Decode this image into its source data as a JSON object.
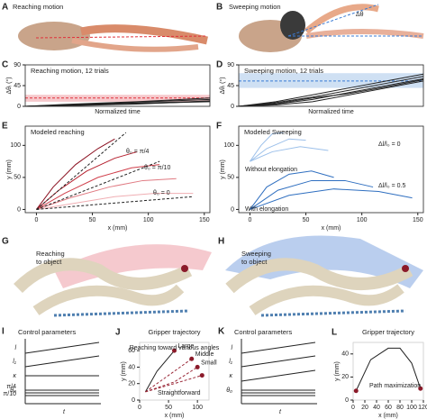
{
  "photos": [
    {
      "label": "A",
      "title": "Reaching motion"
    },
    {
      "label": "B",
      "title": "Sweeping motion",
      "note": "Δθ"
    },
    {
      "label": "G",
      "lines": [
        "Reaching",
        "to object"
      ]
    },
    {
      "label": "H",
      "lines": [
        "Sweeping",
        "to object"
      ]
    }
  ],
  "control_panels": [
    {
      "label": "I",
      "title": "Control parameters",
      "rows": [
        "l",
        "l₁",
        "κ",
        "θ₀"
      ],
      "notes": [
        "π/4",
        "π/10"
      ],
      "x_label": "t"
    },
    {
      "label": "K",
      "title": "Control parameters",
      "rows": [
        "l",
        "l₁",
        "κ",
        "θ₀"
      ],
      "x_label": "t"
    }
  ],
  "chart_data": [
    {
      "type": "line",
      "label": "C",
      "title": "Reaching motion, 12 trials",
      "x_label": "Normalized time",
      "y_label": "Δθᵢ (°)",
      "ylim": [
        0,
        90
      ],
      "yticks": [
        0,
        45,
        90
      ],
      "band": [
        10,
        25
      ],
      "band_color": "#f6c9cc",
      "ref": 18,
      "ref_color": "#e0303a",
      "series": [
        {
          "color": "#222222",
          "values": [
            0,
            2,
            4,
            6,
            8,
            10
          ]
        },
        {
          "color": "#222222",
          "values": [
            0,
            3,
            6,
            9,
            12,
            15
          ]
        },
        {
          "color": "#222222",
          "values": [
            0,
            1,
            3,
            5,
            8,
            12
          ]
        },
        {
          "color": "#222222",
          "values": [
            0,
            4,
            7,
            10,
            14,
            18
          ]
        },
        {
          "color": "#222222",
          "values": [
            0,
            2,
            5,
            7,
            9,
            11
          ]
        }
      ]
    },
    {
      "type": "line",
      "label": "D",
      "title": "Sweeping motion, 12 trials",
      "x_label": "Normalized time",
      "y_label": "Δθᵢ (°)",
      "ylim": [
        0,
        90
      ],
      "yticks": [
        0,
        45,
        90
      ],
      "band": [
        40,
        72
      ],
      "band_color": "#cfe0f3",
      "ref": 55,
      "ref_color": "#3a7bd5",
      "series": [
        {
          "color": "#222222",
          "values": [
            0,
            5,
            15,
            30,
            45,
            60
          ]
        },
        {
          "color": "#222222",
          "values": [
            0,
            8,
            20,
            35,
            50,
            65
          ]
        },
        {
          "color": "#222222",
          "values": [
            0,
            3,
            10,
            25,
            40,
            55
          ]
        },
        {
          "color": "#222222",
          "values": [
            0,
            10,
            25,
            40,
            55,
            70
          ]
        },
        {
          "color": "#222222",
          "values": [
            0,
            6,
            18,
            28,
            42,
            58
          ]
        }
      ]
    },
    {
      "type": "line",
      "label": "E",
      "title": "Modeled reaching",
      "x_label": "x (mm)",
      "y_label": "y (mm)",
      "xlim": [
        -10,
        155
      ],
      "ylim": [
        -5,
        130
      ],
      "xticks": [
        0,
        50,
        100,
        150
      ],
      "yticks": [
        0,
        50,
        100
      ],
      "annotations": [
        "θ₀ = π/4",
        "θ₀ = π/10",
        "θ₀ = 0"
      ],
      "series": [
        {
          "color": "#8b1020",
          "x": [
            0,
            15,
            35,
            55,
            70
          ],
          "values": [
            0,
            35,
            70,
            95,
            110
          ]
        },
        {
          "color": "#b5202e",
          "x": [
            0,
            20,
            45,
            70,
            90
          ],
          "values": [
            0,
            30,
            60,
            80,
            90
          ]
        },
        {
          "color": "#d0404c",
          "x": [
            0,
            25,
            55,
            85,
            110
          ],
          "values": [
            0,
            25,
            50,
            65,
            70
          ]
        },
        {
          "color": "#e07a82",
          "x": [
            0,
            30,
            65,
            95,
            125
          ],
          "values": [
            0,
            18,
            35,
            45,
            48
          ]
        },
        {
          "color": "#f0aeb3",
          "x": [
            0,
            35,
            70,
            105,
            140
          ],
          "values": [
            0,
            10,
            20,
            25,
            25
          ]
        },
        {
          "color": "#222222",
          "dash": true,
          "x": [
            0,
            80
          ],
          "values": [
            0,
            120
          ]
        },
        {
          "color": "#222222",
          "dash": true,
          "x": [
            0,
            110
          ],
          "values": [
            0,
            75
          ]
        },
        {
          "color": "#222222",
          "dash": true,
          "x": [
            0,
            140
          ],
          "values": [
            0,
            20
          ]
        }
      ]
    },
    {
      "type": "line",
      "label": "F",
      "title": "Modeled Sweeping",
      "x_label": "x (mm)",
      "y_label": "y (mm)",
      "xlim": [
        -10,
        155
      ],
      "ylim": [
        -5,
        130
      ],
      "xticks": [
        0,
        50,
        100,
        150
      ],
      "yticks": [
        0,
        50,
        100
      ],
      "annotations": [
        "Without elongation",
        "With elongation",
        "Δl/l₀ = 0",
        "Δl/l₀ = 0.5"
      ],
      "series": [
        {
          "color": "#9cc0ea",
          "x": [
            0,
            10,
            20,
            30
          ],
          "values": [
            75,
            100,
            118,
            120
          ]
        },
        {
          "color": "#9cc0ea",
          "x": [
            0,
            15,
            35,
            50
          ],
          "values": [
            75,
            95,
            110,
            108
          ]
        },
        {
          "color": "#9cc0ea",
          "x": [
            0,
            20,
            45,
            70
          ],
          "values": [
            75,
            90,
            98,
            92
          ]
        },
        {
          "color": "#2f6fc0",
          "x": [
            0,
            15,
            35,
            55,
            75
          ],
          "values": [
            0,
            35,
            55,
            60,
            50
          ]
        },
        {
          "color": "#2f6fc0",
          "x": [
            0,
            25,
            55,
            85,
            110
          ],
          "values": [
            0,
            30,
            45,
            45,
            35
          ]
        },
        {
          "color": "#2f6fc0",
          "x": [
            0,
            35,
            75,
            115,
            145
          ],
          "values": [
            0,
            22,
            32,
            28,
            18
          ]
        }
      ]
    },
    {
      "type": "line",
      "label": "J",
      "title": "Gripper trajectory",
      "subtitle": "Reaching toward various angles",
      "x_label": "x (mm)",
      "y_label": "y (mm)",
      "xlim": [
        0,
        120
      ],
      "ylim": [
        0,
        70
      ],
      "xticks": [
        0,
        50,
        100
      ],
      "yticks": [
        0,
        20,
        40,
        60
      ],
      "end_marker_color": "#8b1a2a",
      "series": [
        {
          "name": "Large",
          "color": "#222222",
          "x": [
            10,
            30,
            60
          ],
          "values": [
            10,
            35,
            60
          ]
        },
        {
          "name": "Middle",
          "color": "#9b2a3a",
          "dash": true,
          "x": [
            10,
            50,
            90
          ],
          "values": [
            10,
            30,
            50
          ]
        },
        {
          "name": "Small",
          "color": "#9b2a3a",
          "dash": true,
          "x": [
            10,
            60,
            100
          ],
          "values": [
            10,
            22,
            40
          ]
        },
        {
          "name": "Straightforward",
          "color": "#9b2a3a",
          "dash": true,
          "x": [
            10,
            60,
            108
          ],
          "values": [
            10,
            20,
            30
          ]
        }
      ]
    },
    {
      "type": "line",
      "label": "L",
      "title": "Gripper trajectory",
      "x_label": "x (mm)",
      "y_label": "y (mm)",
      "xlim": [
        0,
        120
      ],
      "ylim": [
        0,
        50
      ],
      "xticks": [
        0,
        20,
        40,
        60,
        80,
        100,
        120
      ],
      "yticks": [
        0,
        20,
        40
      ],
      "end_marker_color": "#8b1a2a",
      "annotations": [
        "Path maximization"
      ],
      "series": [
        {
          "color": "#222222",
          "x": [
            5,
            30,
            60,
            80,
            100,
            115
          ],
          "values": [
            8,
            35,
            45,
            45,
            32,
            10
          ]
        }
      ]
    }
  ]
}
